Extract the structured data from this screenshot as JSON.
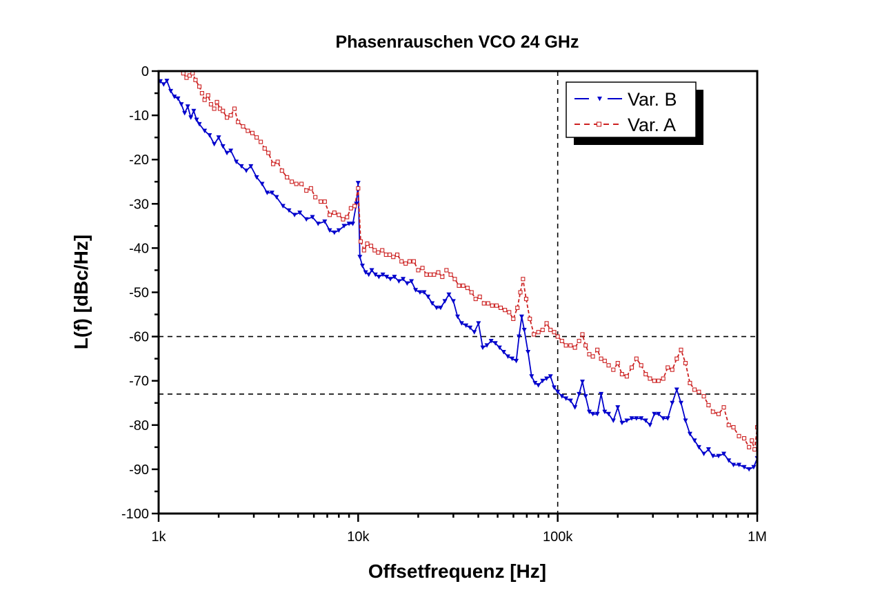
{
  "chart_data": {
    "type": "line",
    "title": "Phasenrauschen VCO 24 GHz",
    "xlabel": "Offsetfrequenz [Hz]",
    "ylabel": "L(f) [dBc/Hz]",
    "xscale": "log",
    "xlim": [
      1000,
      1000000
    ],
    "ylim": [
      -100,
      0
    ],
    "x_ticks": [
      {
        "value": 1000,
        "label": "1k"
      },
      {
        "value": 10000,
        "label": "10k"
      },
      {
        "value": 100000,
        "label": "100k"
      },
      {
        "value": 1000000,
        "label": "1M"
      }
    ],
    "y_ticks": [
      {
        "value": 0,
        "label": "0"
      },
      {
        "value": -10,
        "label": "-10"
      },
      {
        "value": -20,
        "label": "-20"
      },
      {
        "value": -30,
        "label": "-30"
      },
      {
        "value": -40,
        "label": "-40"
      },
      {
        "value": -50,
        "label": "-50"
      },
      {
        "value": -60,
        "label": "-60"
      },
      {
        "value": -70,
        "label": "-70"
      },
      {
        "value": -80,
        "label": "-80"
      },
      {
        "value": -90,
        "label": "-90"
      },
      {
        "value": -100,
        "label": "-100"
      }
    ],
    "grid": false,
    "legend_position": "top-right",
    "reference_lines": [
      {
        "orientation": "vertical",
        "value": 100000
      },
      {
        "orientation": "horizontal",
        "value": -60
      },
      {
        "orientation": "horizontal",
        "value": -73
      }
    ],
    "series": [
      {
        "name": "Var. B",
        "color": "#0000cc",
        "line_style": "solid",
        "marker": "triangle-down",
        "points": [
          [
            1020,
            -2.3
          ],
          [
            1060,
            -3.0
          ],
          [
            1100,
            -2.2
          ],
          [
            1150,
            -4.5
          ],
          [
            1200,
            -5.8
          ],
          [
            1250,
            -6.2
          ],
          [
            1300,
            -7.5
          ],
          [
            1350,
            -9.5
          ],
          [
            1400,
            -8.0
          ],
          [
            1450,
            -10.5
          ],
          [
            1500,
            -9.0
          ],
          [
            1550,
            -11.0
          ],
          [
            1600,
            -12.0
          ],
          [
            1700,
            -13.5
          ],
          [
            1800,
            -14.5
          ],
          [
            1900,
            -16.5
          ],
          [
            2000,
            -15.0
          ],
          [
            2100,
            -17.0
          ],
          [
            2200,
            -18.5
          ],
          [
            2300,
            -18.0
          ],
          [
            2450,
            -20.5
          ],
          [
            2600,
            -21.5
          ],
          [
            2750,
            -22.5
          ],
          [
            2900,
            -21.5
          ],
          [
            3100,
            -24.0
          ],
          [
            3300,
            -25.5
          ],
          [
            3500,
            -27.5
          ],
          [
            3700,
            -27.5
          ],
          [
            3900,
            -28.5
          ],
          [
            4200,
            -30.5
          ],
          [
            4500,
            -31.5
          ],
          [
            4800,
            -32.5
          ],
          [
            5100,
            -32.0
          ],
          [
            5500,
            -33.5
          ],
          [
            5900,
            -33.0
          ],
          [
            6300,
            -34.5
          ],
          [
            6800,
            -34.0
          ],
          [
            7200,
            -36.0
          ],
          [
            7600,
            -36.5
          ],
          [
            8000,
            -36.0
          ],
          [
            8500,
            -35.0
          ],
          [
            9000,
            -34.5
          ],
          [
            9400,
            -34.5
          ],
          [
            9800,
            -30.0
          ],
          [
            10000,
            -25.3
          ],
          [
            10200,
            -42.0
          ],
          [
            10500,
            -44.0
          ],
          [
            10900,
            -45.5
          ],
          [
            11300,
            -46.0
          ],
          [
            11700,
            -45.0
          ],
          [
            12200,
            -46.0
          ],
          [
            12700,
            -46.5
          ],
          [
            13300,
            -46.0
          ],
          [
            13900,
            -46.5
          ],
          [
            14500,
            -47.0
          ],
          [
            15200,
            -46.5
          ],
          [
            16000,
            -47.5
          ],
          [
            16800,
            -47.0
          ],
          [
            17600,
            -48.0
          ],
          [
            18500,
            -47.5
          ],
          [
            19400,
            -49.5
          ],
          [
            20400,
            -50.0
          ],
          [
            21400,
            -50.0
          ],
          [
            22400,
            -51.0
          ],
          [
            23500,
            -52.5
          ],
          [
            24700,
            -53.5
          ],
          [
            25900,
            -53.5
          ],
          [
            27200,
            -52.0
          ],
          [
            28500,
            -50.5
          ],
          [
            30000,
            -52.0
          ],
          [
            31500,
            -55.5
          ],
          [
            33000,
            -57.0
          ],
          [
            34700,
            -57.5
          ],
          [
            36400,
            -58.0
          ],
          [
            38200,
            -59.0
          ],
          [
            40100,
            -57.0
          ],
          [
            42100,
            -62.5
          ],
          [
            44200,
            -62.0
          ],
          [
            46400,
            -61.0
          ],
          [
            48700,
            -61.5
          ],
          [
            51100,
            -62.5
          ],
          [
            53600,
            -63.5
          ],
          [
            56300,
            -64.5
          ],
          [
            59100,
            -65.0
          ],
          [
            62000,
            -65.5
          ],
          [
            64000,
            -60.0
          ],
          [
            66000,
            -55.5
          ],
          [
            68000,
            -58.5
          ],
          [
            71000,
            -63.5
          ],
          [
            74000,
            -69.0
          ],
          [
            77000,
            -70.5
          ],
          [
            80000,
            -71.0
          ],
          [
            84000,
            -70.0
          ],
          [
            88000,
            -69.5
          ],
          [
            92000,
            -69.0
          ],
          [
            96000,
            -71.5
          ],
          [
            100000,
            -72.5
          ],
          [
            105000,
            -73.5
          ],
          [
            110000,
            -74.0
          ],
          [
            116000,
            -74.5
          ],
          [
            122000,
            -76.0
          ],
          [
            128000,
            -73.0
          ],
          [
            133000,
            -70.2
          ],
          [
            138000,
            -73.5
          ],
          [
            144000,
            -77.0
          ],
          [
            150000,
            -77.5
          ],
          [
            158000,
            -77.5
          ],
          [
            165000,
            -73.0
          ],
          [
            172000,
            -77.0
          ],
          [
            180000,
            -77.5
          ],
          [
            190000,
            -79.0
          ],
          [
            200000,
            -76.0
          ],
          [
            210000,
            -79.5
          ],
          [
            222000,
            -79.0
          ],
          [
            235000,
            -78.5
          ],
          [
            248000,
            -78.5
          ],
          [
            262000,
            -78.5
          ],
          [
            276000,
            -79.0
          ],
          [
            290000,
            -80.0
          ],
          [
            305000,
            -77.5
          ],
          [
            320000,
            -77.5
          ],
          [
            338000,
            -78.5
          ],
          [
            356000,
            -78.5
          ],
          [
            375000,
            -75.0
          ],
          [
            395000,
            -72.0
          ],
          [
            415000,
            -75.0
          ],
          [
            437000,
            -79.0
          ],
          [
            460000,
            -82.0
          ],
          [
            485000,
            -83.5
          ],
          [
            510000,
            -85.0
          ],
          [
            540000,
            -86.5
          ],
          [
            570000,
            -85.5
          ],
          [
            600000,
            -87.0
          ],
          [
            640000,
            -87.0
          ],
          [
            680000,
            -86.5
          ],
          [
            720000,
            -88.0
          ],
          [
            760000,
            -89.0
          ],
          [
            810000,
            -89.0
          ],
          [
            860000,
            -89.5
          ],
          [
            910000,
            -90.0
          ],
          [
            960000,
            -89.5
          ],
          [
            1000000,
            -87.5
          ]
        ]
      },
      {
        "name": "Var. A",
        "color": "#cc2020",
        "line_style": "dashed",
        "marker": "square-open",
        "points": [
          [
            1330,
            -0.5
          ],
          [
            1380,
            -1.5
          ],
          [
            1430,
            -1.0
          ],
          [
            1480,
            -0.5
          ],
          [
            1530,
            -2.0
          ],
          [
            1600,
            -3.5
          ],
          [
            1650,
            -5.0
          ],
          [
            1700,
            -6.5
          ],
          [
            1770,
            -5.5
          ],
          [
            1830,
            -7.5
          ],
          [
            1900,
            -8.5
          ],
          [
            1960,
            -7.0
          ],
          [
            2030,
            -8.5
          ],
          [
            2100,
            -9.0
          ],
          [
            2200,
            -10.5
          ],
          [
            2300,
            -10.0
          ],
          [
            2400,
            -8.5
          ],
          [
            2500,
            -11.5
          ],
          [
            2650,
            -12.5
          ],
          [
            2800,
            -13.5
          ],
          [
            2950,
            -14.0
          ],
          [
            3100,
            -15.0
          ],
          [
            3250,
            -16.0
          ],
          [
            3400,
            -17.5
          ],
          [
            3550,
            -18.5
          ],
          [
            3750,
            -21.0
          ],
          [
            3950,
            -20.5
          ],
          [
            4150,
            -22.5
          ],
          [
            4400,
            -24.0
          ],
          [
            4650,
            -25.0
          ],
          [
            4900,
            -25.5
          ],
          [
            5200,
            -25.5
          ],
          [
            5500,
            -27.0
          ],
          [
            5800,
            -26.5
          ],
          [
            6100,
            -28.5
          ],
          [
            6500,
            -29.5
          ],
          [
            6800,
            -29.5
          ],
          [
            7200,
            -32.5
          ],
          [
            7600,
            -32.0
          ],
          [
            8000,
            -32.5
          ],
          [
            8400,
            -33.5
          ],
          [
            8800,
            -33.0
          ],
          [
            9200,
            -31.0
          ],
          [
            9600,
            -30.5
          ],
          [
            10000,
            -26.5
          ],
          [
            10300,
            -38.5
          ],
          [
            10700,
            -40.5
          ],
          [
            11100,
            -39.0
          ],
          [
            11600,
            -39.5
          ],
          [
            12100,
            -40.5
          ],
          [
            12600,
            -41.0
          ],
          [
            13200,
            -40.5
          ],
          [
            13800,
            -41.5
          ],
          [
            14400,
            -41.5
          ],
          [
            15000,
            -42.0
          ],
          [
            15700,
            -41.5
          ],
          [
            16500,
            -43.0
          ],
          [
            17300,
            -43.5
          ],
          [
            18100,
            -43.0
          ],
          [
            19000,
            -43.0
          ],
          [
            20000,
            -45.0
          ],
          [
            21000,
            -44.5
          ],
          [
            22000,
            -46.0
          ],
          [
            23000,
            -46.0
          ],
          [
            24000,
            -46.0
          ],
          [
            25200,
            -45.5
          ],
          [
            26400,
            -46.5
          ],
          [
            27700,
            -45.0
          ],
          [
            29100,
            -46.0
          ],
          [
            30500,
            -47.0
          ],
          [
            32000,
            -48.5
          ],
          [
            33600,
            -48.5
          ],
          [
            35300,
            -49.0
          ],
          [
            37000,
            -50.0
          ],
          [
            38800,
            -51.5
          ],
          [
            40700,
            -51.0
          ],
          [
            42700,
            -52.5
          ],
          [
            44800,
            -52.5
          ],
          [
            47000,
            -53.0
          ],
          [
            49400,
            -53.0
          ],
          [
            51800,
            -53.5
          ],
          [
            54400,
            -54.0
          ],
          [
            57100,
            -54.5
          ],
          [
            59900,
            -56.0
          ],
          [
            62800,
            -53.5
          ],
          [
            65000,
            -50.0
          ],
          [
            67000,
            -47.0
          ],
          [
            69500,
            -51.5
          ],
          [
            72500,
            -56.0
          ],
          [
            76000,
            -59.5
          ],
          [
            80000,
            -59.0
          ],
          [
            84000,
            -58.5
          ],
          [
            88000,
            -57.0
          ],
          [
            92000,
            -58.5
          ],
          [
            96000,
            -59.0
          ],
          [
            100000,
            -60.0
          ],
          [
            105000,
            -61.0
          ],
          [
            110000,
            -62.0
          ],
          [
            116000,
            -62.0
          ],
          [
            122000,
            -62.5
          ],
          [
            128000,
            -61.0
          ],
          [
            133000,
            -59.5
          ],
          [
            138000,
            -62.0
          ],
          [
            144000,
            -64.0
          ],
          [
            150000,
            -64.5
          ],
          [
            158000,
            -63.0
          ],
          [
            165000,
            -65.0
          ],
          [
            172000,
            -65.5
          ],
          [
            180000,
            -66.5
          ],
          [
            190000,
            -67.5
          ],
          [
            200000,
            -66.0
          ],
          [
            210000,
            -68.5
          ],
          [
            222000,
            -69.0
          ],
          [
            235000,
            -67.0
          ],
          [
            248000,
            -65.0
          ],
          [
            262000,
            -66.5
          ],
          [
            276000,
            -68.5
          ],
          [
            290000,
            -69.5
          ],
          [
            305000,
            -70.0
          ],
          [
            320000,
            -70.0
          ],
          [
            338000,
            -69.5
          ],
          [
            356000,
            -67.0
          ],
          [
            375000,
            -67.5
          ],
          [
            395000,
            -65.0
          ],
          [
            415000,
            -63.0
          ],
          [
            437000,
            -66.0
          ],
          [
            460000,
            -70.5
          ],
          [
            485000,
            -72.0
          ],
          [
            510000,
            -72.5
          ],
          [
            540000,
            -73.5
          ],
          [
            570000,
            -75.5
          ],
          [
            600000,
            -77.0
          ],
          [
            640000,
            -77.5
          ],
          [
            680000,
            -76.0
          ],
          [
            720000,
            -80.0
          ],
          [
            760000,
            -80.5
          ],
          [
            810000,
            -82.5
          ],
          [
            860000,
            -83.0
          ],
          [
            910000,
            -85.0
          ],
          [
            940000,
            -83.5
          ],
          [
            970000,
            -85.5
          ],
          [
            1000000,
            -80.5
          ]
        ]
      }
    ]
  }
}
